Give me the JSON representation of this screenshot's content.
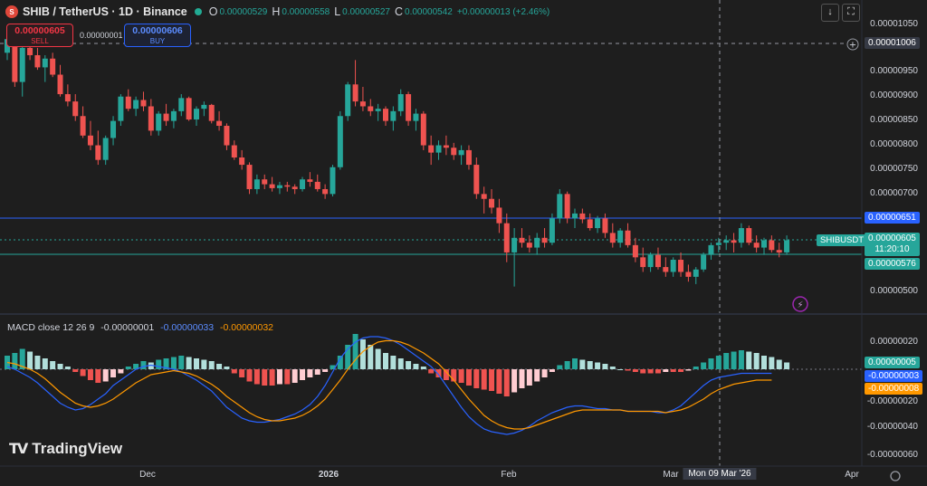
{
  "header": {
    "symbol": "SHIB / TetherUS · 1D · Binance",
    "o_key": "O",
    "o_val": "0.00000529",
    "h_key": "H",
    "h_val": "0.00000558",
    "l_key": "L",
    "l_val": "0.00000527",
    "c_key": "C",
    "c_val": "0.00000542",
    "change": "+0.00000013 (+2.46%)"
  },
  "trade": {
    "sell_price": "0.00000605",
    "sell_label": "SELL",
    "buy_price": "0.00000606",
    "buy_label": "BUY",
    "spread": "0.00000001"
  },
  "price_tags": {
    "crosshair_price": "0.00001006",
    "blue_line": "0.00000651",
    "symbol_tag": "SHIBUSDT",
    "last_price": "0.00000605",
    "countdown": "11:20:10",
    "green_line": "0.00000576"
  },
  "macd_tags": {
    "hist": "0.00000005",
    "macd": "-0.00000003",
    "signal": "-0.00000008"
  },
  "macd_header": {
    "label": "MACD close 12 26 9",
    "v1": "-0.00000001",
    "v2": "-0.00000033",
    "v3": "-0.00000032"
  },
  "x_axis": {
    "dec": "Dec",
    "y2026": "2026",
    "feb": "Feb",
    "mar": "Mar",
    "apr": "Apr",
    "crosshair_date": "Mon 09 Mar '26"
  },
  "brand": "TradingView",
  "colors": {
    "up": "#26a69a",
    "down": "#ef5350",
    "macd_line": "#2962ff",
    "signal_line": "#ff9800",
    "hist_up_strong": "#26a69a",
    "hist_up_weak": "#b2dfdb",
    "hist_down_strong": "#ef5350",
    "hist_down_weak": "#ffcdd2"
  },
  "icons": [
    "download-icon",
    "fullscreen-icon",
    "crosshair-plus-icon",
    "lightning-icon",
    "settings-icon"
  ],
  "chart_data": {
    "type": "candlestick",
    "price_axis_ticks": [
      "0.00001050",
      "0.00001006",
      "0.00000950",
      "0.00000900",
      "0.00000850",
      "0.00000800",
      "0.00000750",
      "0.00000700",
      "0.00000605",
      "0.00000500"
    ],
    "price_axis_labels": [
      "0.00001050",
      "0.00000950",
      "0.00000900",
      "0.00000850",
      "0.00000800",
      "0.00000750",
      "0.00000700",
      "0.00000500"
    ],
    "price_ylim": [
      4.7e-06,
      1.08e-05
    ],
    "macd_axis_labels": [
      "0.00000020",
      "-0.00000020",
      "-0.00000040",
      "-0.00000060"
    ],
    "macd_ylim": [
      -6.6e-07,
      2.8e-07
    ],
    "horizontal_lines": [
      6.51e-06,
      5.76e-06
    ],
    "candles_ohlc": [
      [
        990,
        1025,
        975,
        1018
      ],
      [
        1018,
        1028,
        920,
        930
      ],
      [
        930,
        1010,
        900,
        1000
      ],
      [
        1000,
        1010,
        975,
        985
      ],
      [
        985,
        1000,
        955,
        960
      ],
      [
        960,
        985,
        930,
        978
      ],
      [
        978,
        990,
        940,
        945
      ],
      [
        945,
        965,
        900,
        905
      ],
      [
        905,
        925,
        880,
        890
      ],
      [
        890,
        905,
        850,
        860
      ],
      [
        860,
        880,
        815,
        820
      ],
      [
        820,
        850,
        790,
        800
      ],
      [
        800,
        830,
        760,
        770
      ],
      [
        770,
        820,
        760,
        815
      ],
      [
        815,
        860,
        800,
        850
      ],
      [
        850,
        905,
        840,
        900
      ],
      [
        900,
        915,
        870,
        875
      ],
      [
        875,
        900,
        860,
        893
      ],
      [
        893,
        910,
        870,
        880
      ],
      [
        880,
        895,
        820,
        830
      ],
      [
        830,
        870,
        820,
        865
      ],
      [
        865,
        885,
        840,
        850
      ],
      [
        850,
        875,
        835,
        870
      ],
      [
        870,
        905,
        860,
        897
      ],
      [
        897,
        900,
        850,
        853
      ],
      [
        853,
        880,
        840,
        875
      ],
      [
        875,
        890,
        860,
        883
      ],
      [
        883,
        885,
        845,
        850
      ],
      [
        850,
        870,
        830,
        840
      ],
      [
        840,
        845,
        790,
        800
      ],
      [
        800,
        810,
        770,
        775
      ],
      [
        775,
        790,
        750,
        760
      ],
      [
        760,
        765,
        700,
        710
      ],
      [
        710,
        740,
        700,
        730
      ],
      [
        730,
        740,
        710,
        720
      ],
      [
        720,
        735,
        705,
        712
      ],
      [
        712,
        725,
        700,
        718
      ],
      [
        718,
        725,
        705,
        715
      ],
      [
        715,
        720,
        700,
        710
      ],
      [
        710,
        735,
        705,
        730
      ],
      [
        730,
        745,
        715,
        725
      ],
      [
        725,
        740,
        705,
        710
      ],
      [
        710,
        720,
        690,
        700
      ],
      [
        700,
        760,
        695,
        755
      ],
      [
        755,
        870,
        750,
        860
      ],
      [
        860,
        930,
        850,
        925
      ],
      [
        925,
        975,
        880,
        890
      ],
      [
        890,
        920,
        870,
        880
      ],
      [
        880,
        895,
        860,
        870
      ],
      [
        870,
        885,
        850,
        875
      ],
      [
        875,
        880,
        840,
        850
      ],
      [
        850,
        880,
        830,
        870
      ],
      [
        870,
        915,
        860,
        905
      ],
      [
        905,
        910,
        840,
        850
      ],
      [
        850,
        875,
        830,
        865
      ],
      [
        865,
        870,
        790,
        800
      ],
      [
        800,
        820,
        760,
        785
      ],
      [
        785,
        810,
        770,
        800
      ],
      [
        800,
        820,
        780,
        795
      ],
      [
        795,
        805,
        770,
        780
      ],
      [
        780,
        800,
        760,
        790
      ],
      [
        790,
        800,
        750,
        760
      ],
      [
        760,
        775,
        690,
        700
      ],
      [
        700,
        715,
        660,
        690
      ],
      [
        690,
        710,
        660,
        672
      ],
      [
        672,
        690,
        620,
        640
      ],
      [
        640,
        660,
        560,
        580
      ],
      [
        580,
        630,
        510,
        610
      ],
      [
        610,
        630,
        590,
        600
      ],
      [
        600,
        615,
        580,
        590
      ],
      [
        590,
        620,
        575,
        610
      ],
      [
        610,
        630,
        590,
        600
      ],
      [
        600,
        660,
        595,
        650
      ],
      [
        650,
        710,
        640,
        700
      ],
      [
        700,
        705,
        640,
        650
      ],
      [
        650,
        670,
        630,
        660
      ],
      [
        660,
        670,
        640,
        648
      ],
      [
        648,
        660,
        625,
        630
      ],
      [
        630,
        655,
        620,
        650
      ],
      [
        650,
        660,
        610,
        620
      ],
      [
        620,
        640,
        590,
        600
      ],
      [
        600,
        630,
        590,
        625
      ],
      [
        625,
        640,
        590,
        595
      ],
      [
        595,
        610,
        560,
        570
      ],
      [
        570,
        590,
        540,
        550
      ],
      [
        550,
        580,
        540,
        575
      ],
      [
        575,
        590,
        545,
        550
      ],
      [
        550,
        570,
        530,
        540
      ],
      [
        540,
        570,
        530,
        565
      ],
      [
        565,
        580,
        530,
        540
      ],
      [
        540,
        555,
        520,
        530
      ],
      [
        530,
        550,
        515,
        545
      ],
      [
        545,
        580,
        540,
        575
      ],
      [
        575,
        600,
        565,
        595
      ],
      [
        595,
        610,
        580,
        600
      ],
      [
        600,
        615,
        585,
        605
      ],
      [
        605,
        620,
        580,
        600
      ],
      [
        600,
        640,
        590,
        630
      ],
      [
        630,
        635,
        595,
        600
      ],
      [
        600,
        615,
        580,
        590
      ],
      [
        590,
        610,
        575,
        605
      ],
      [
        605,
        615,
        580,
        585
      ],
      [
        585,
        600,
        570,
        580
      ],
      [
        580,
        615,
        575,
        605
      ]
    ],
    "macd_histogram": [
      0.1,
      0.12,
      0.15,
      0.13,
      0.1,
      0.08,
      0.06,
      0.04,
      0.02,
      -0.02,
      -0.05,
      -0.08,
      -0.1,
      -0.09,
      -0.06,
      -0.03,
      0.02,
      0.04,
      0.06,
      0.05,
      0.07,
      0.08,
      0.09,
      0.1,
      0.09,
      0.08,
      0.07,
      0.06,
      0.04,
      0.02,
      -0.03,
      -0.06,
      -0.09,
      -0.11,
      -0.12,
      -0.12,
      -0.11,
      -0.11,
      -0.1,
      -0.08,
      -0.06,
      -0.04,
      -0.02,
      0.03,
      0.1,
      0.18,
      0.26,
      0.22,
      0.18,
      0.15,
      0.12,
      0.1,
      0.08,
      0.06,
      0.04,
      0.02,
      -0.03,
      -0.06,
      -0.08,
      -0.09,
      -0.1,
      -0.12,
      -0.14,
      -0.15,
      -0.16,
      -0.18,
      -0.2,
      -0.17,
      -0.14,
      -0.12,
      -0.09,
      -0.06,
      -0.02,
      0.03,
      0.06,
      0.08,
      0.07,
      0.06,
      0.05,
      0.04,
      0.02,
      0.0,
      -0.01,
      -0.02,
      -0.03,
      -0.03,
      -0.03,
      -0.02,
      -0.02,
      -0.02,
      -0.01,
      0.02,
      0.05,
      0.08,
      0.1,
      0.12,
      0.13,
      0.14,
      0.13,
      0.12,
      0.1,
      0.09,
      0.07,
      0.05
    ],
    "macd_line": [
      0.02,
      0.0,
      -0.03,
      -0.06,
      -0.1,
      -0.15,
      -0.2,
      -0.25,
      -0.28,
      -0.3,
      -0.29,
      -0.26,
      -0.22,
      -0.18,
      -0.12,
      -0.08,
      -0.04,
      0.0,
      0.02,
      0.03,
      0.02,
      0.01,
      0.0,
      -0.02,
      -0.05,
      -0.08,
      -0.12,
      -0.16,
      -0.22,
      -0.28,
      -0.32,
      -0.36,
      -0.38,
      -0.39,
      -0.39,
      -0.38,
      -0.37,
      -0.35,
      -0.33,
      -0.3,
      -0.26,
      -0.2,
      -0.12,
      -0.02,
      0.08,
      0.15,
      0.2,
      0.23,
      0.24,
      0.24,
      0.23,
      0.21,
      0.18,
      0.14,
      0.1,
      0.06,
      0.02,
      -0.04,
      -0.12,
      -0.2,
      -0.28,
      -0.35,
      -0.4,
      -0.44,
      -0.46,
      -0.47,
      -0.48,
      -0.47,
      -0.45,
      -0.42,
      -0.38,
      -0.35,
      -0.32,
      -0.3,
      -0.28,
      -0.27,
      -0.27,
      -0.28,
      -0.29,
      -0.29,
      -0.3,
      -0.3,
      -0.31,
      -0.31,
      -0.31,
      -0.31,
      -0.32,
      -0.32,
      -0.3,
      -0.27,
      -0.22,
      -0.17,
      -0.12,
      -0.08,
      -0.06,
      -0.05,
      -0.04,
      -0.03,
      -0.03,
      -0.03,
      -0.03,
      -0.03
    ],
    "signal_line": [
      0.05,
      0.04,
      0.02,
      0.0,
      -0.03,
      -0.07,
      -0.12,
      -0.17,
      -0.21,
      -0.25,
      -0.27,
      -0.28,
      -0.27,
      -0.25,
      -0.22,
      -0.18,
      -0.14,
      -0.1,
      -0.07,
      -0.04,
      -0.03,
      -0.02,
      -0.01,
      -0.02,
      -0.03,
      -0.05,
      -0.08,
      -0.11,
      -0.15,
      -0.2,
      -0.24,
      -0.28,
      -0.32,
      -0.35,
      -0.37,
      -0.38,
      -0.38,
      -0.37,
      -0.36,
      -0.34,
      -0.31,
      -0.27,
      -0.22,
      -0.15,
      -0.08,
      0.0,
      0.07,
      0.13,
      0.17,
      0.2,
      0.21,
      0.21,
      0.2,
      0.18,
      0.15,
      0.12,
      0.08,
      0.04,
      -0.02,
      -0.08,
      -0.15,
      -0.22,
      -0.28,
      -0.34,
      -0.38,
      -0.41,
      -0.43,
      -0.44,
      -0.44,
      -0.43,
      -0.41,
      -0.39,
      -0.37,
      -0.35,
      -0.33,
      -0.31,
      -0.3,
      -0.3,
      -0.3,
      -0.3,
      -0.3,
      -0.3,
      -0.31,
      -0.31,
      -0.31,
      -0.31,
      -0.31,
      -0.32,
      -0.31,
      -0.3,
      -0.28,
      -0.25,
      -0.22,
      -0.18,
      -0.15,
      -0.13,
      -0.11,
      -0.1,
      -0.09,
      -0.08,
      -0.08,
      -0.08
    ]
  }
}
